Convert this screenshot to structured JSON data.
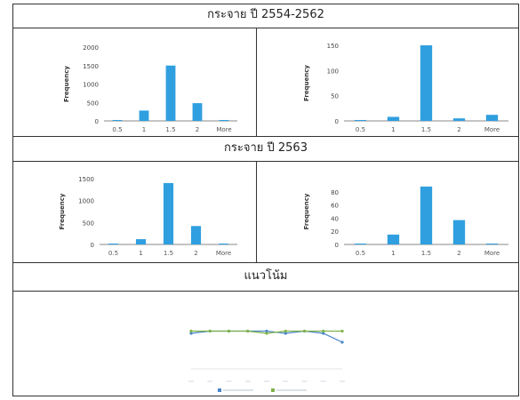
{
  "sections": {
    "s1_title": "กระจาย ปี 2554-2562",
    "s2_title": "กระจาย ปี 2563",
    "s3_title": "แนวโน้ม"
  },
  "chart_data": [
    {
      "type": "bar",
      "categories": [
        "0.5",
        "1",
        "1.5",
        "2",
        "More"
      ],
      "values": [
        0,
        280,
        1500,
        480,
        0
      ],
      "ylabel": "Frequency",
      "yticks": [
        0,
        500,
        1000,
        1500,
        2000
      ],
      "ylim": [
        0,
        2000
      ],
      "color": "#2f9fe0"
    },
    {
      "type": "bar",
      "categories": [
        "0.5",
        "1",
        "1.5",
        "2",
        "More"
      ],
      "values": [
        0,
        8,
        150,
        5,
        12
      ],
      "ylabel": "Frequency",
      "yticks": [
        0,
        50,
        100,
        150
      ],
      "ylim": [
        0,
        150
      ],
      "color": "#2f9fe0"
    },
    {
      "type": "bar",
      "categories": [
        "0.5",
        "1",
        "1.5",
        "2",
        "More"
      ],
      "values": [
        0,
        120,
        1400,
        420,
        0
      ],
      "ylabel": "Frequency",
      "yticks": [
        0,
        500,
        1000,
        1500
      ],
      "ylim": [
        0,
        1500
      ],
      "color": "#2f9fe0"
    },
    {
      "type": "bar",
      "categories": [
        "0.5",
        "1",
        "1.5",
        "2",
        "More"
      ],
      "values": [
        0,
        15,
        88,
        37,
        0
      ],
      "ylabel": "Frequency",
      "yticks": [
        0,
        20,
        40,
        60,
        80
      ],
      "ylim": [
        0,
        100
      ],
      "color": "#2f9fe0"
    },
    {
      "type": "line",
      "x": [
        1,
        2,
        3,
        4,
        5,
        6,
        7,
        8,
        9
      ],
      "series": [
        {
          "values": [
            1.6,
            1.7,
            1.7,
            1.7,
            1.7,
            1.6,
            1.7,
            1.6,
            1.2
          ],
          "color": "#4a86c8"
        },
        {
          "values": [
            1.7,
            1.7,
            1.7,
            1.7,
            1.6,
            1.7,
            1.7,
            1.7,
            1.7
          ],
          "color": "#7fb24a"
        }
      ],
      "ylim": [
        0,
        2
      ],
      "legend_position": "bottom"
    }
  ]
}
